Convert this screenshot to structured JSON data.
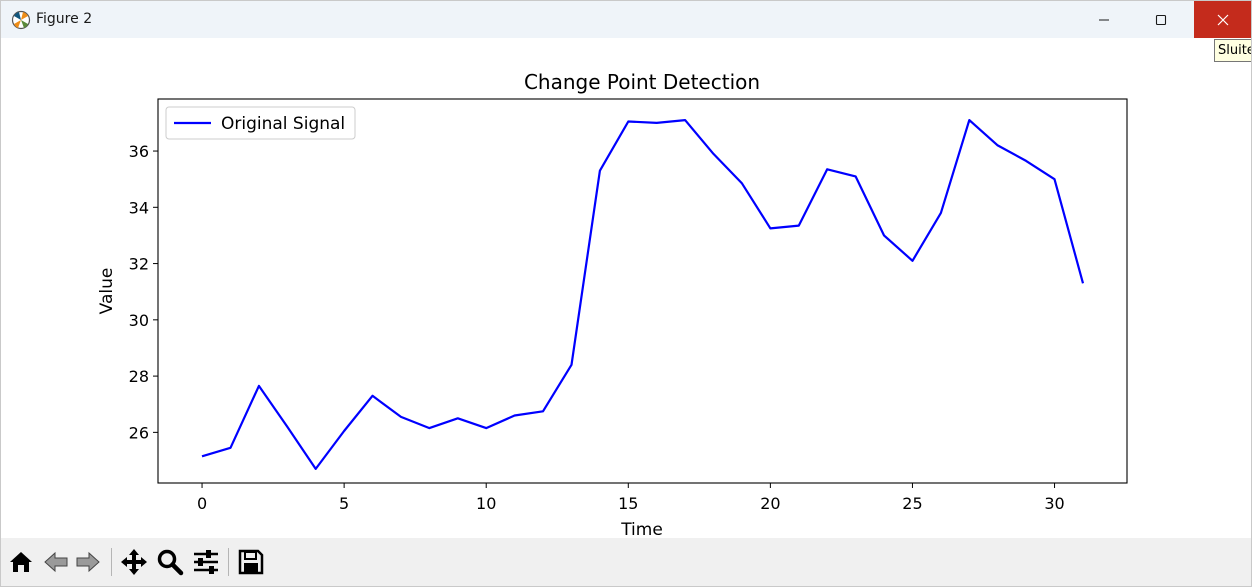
{
  "window": {
    "title": "Figure 2",
    "tooltip": "Sluiten"
  },
  "toolbar": {
    "buttons": [
      {
        "name": "home-button",
        "icon": "home-icon"
      },
      {
        "name": "back-button",
        "icon": "arrow-left-icon"
      },
      {
        "name": "forward-button",
        "icon": "arrow-right-icon"
      },
      {
        "name": "pan-button",
        "icon": "move-icon"
      },
      {
        "name": "zoom-button",
        "icon": "magnifier-icon"
      },
      {
        "name": "configure-subplots-button",
        "icon": "sliders-icon"
      },
      {
        "name": "save-button",
        "icon": "floppy-disk-icon"
      }
    ]
  },
  "chart_data": {
    "type": "line",
    "title": "Change Point Detection",
    "xlabel": "Time",
    "ylabel": "Value",
    "xlim": [
      -1.55,
      32.55
    ],
    "ylim": [
      24.2,
      37.85
    ],
    "xticks": [
      0,
      5,
      10,
      15,
      20,
      25,
      30
    ],
    "yticks": [
      26,
      28,
      30,
      32,
      34,
      36
    ],
    "grid": false,
    "legend_position": "upper left",
    "series": [
      {
        "name": "Original Signal",
        "color": "#0000ff",
        "x": [
          0,
          1,
          2,
          3,
          4,
          5,
          6,
          7,
          8,
          9,
          10,
          11,
          12,
          13,
          14,
          15,
          16,
          17,
          18,
          19,
          20,
          21,
          22,
          23,
          24,
          25,
          26,
          27,
          28,
          29,
          30,
          31
        ],
        "values": [
          25.15,
          25.45,
          27.65,
          26.2,
          24.7,
          26.05,
          27.3,
          26.55,
          26.15,
          26.5,
          26.15,
          26.6,
          26.75,
          28.4,
          35.3,
          37.05,
          37.0,
          37.1,
          35.9,
          34.85,
          33.25,
          33.35,
          35.35,
          35.1,
          33.0,
          32.1,
          33.8,
          37.1,
          36.2,
          35.65,
          35.0,
          31.3
        ]
      }
    ]
  }
}
